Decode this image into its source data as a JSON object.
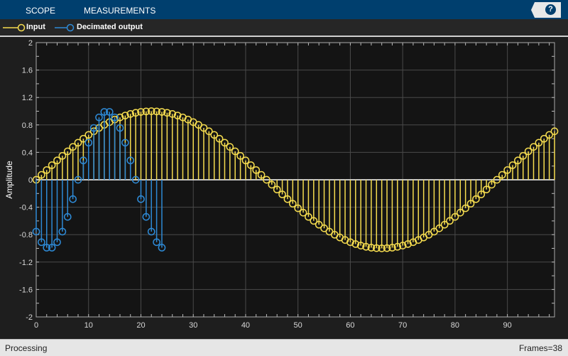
{
  "toolbar": {
    "tabs": [
      "SCOPE",
      "MEASUREMENTS"
    ],
    "help_label": "?"
  },
  "status": {
    "left": "Processing",
    "right": "Frames=38"
  },
  "colors": {
    "input": "#f5dc4f",
    "output": "#2e8ad6",
    "axes_bg": "#141414",
    "grid": "#555555"
  },
  "chart_data": {
    "type": "stem",
    "ylabel": "Amplitude",
    "xlim": [
      0,
      99
    ],
    "ylim": [
      -2,
      2
    ],
    "xticks": [
      0,
      10,
      20,
      30,
      40,
      50,
      60,
      70,
      80,
      90
    ],
    "yticks": [
      2,
      1.6,
      1.2,
      0.8,
      0.4,
      0,
      -0.4,
      -0.8,
      -1.2,
      -1.6,
      -2
    ],
    "ytick_labels": [
      "2",
      "1.6",
      "1.2",
      "0.8",
      "0.4",
      "0",
      "-0.4",
      "-0.8",
      "-1.2",
      "-1.6",
      "-2"
    ],
    "grid": true,
    "legend_position": "top-left",
    "series": [
      {
        "name": "Input",
        "color": "#f5dc4f",
        "values": [
          0,
          0.071,
          0.142,
          0.213,
          0.282,
          0.349,
          0.415,
          0.479,
          0.541,
          0.599,
          0.655,
          0.707,
          0.756,
          0.801,
          0.841,
          0.878,
          0.91,
          0.937,
          0.96,
          0.977,
          0.99,
          0.997,
          1,
          0.997,
          0.99,
          0.977,
          0.96,
          0.937,
          0.91,
          0.878,
          0.841,
          0.801,
          0.756,
          0.707,
          0.655,
          0.599,
          0.541,
          0.479,
          0.415,
          0.349,
          0.282,
          0.213,
          0.142,
          0.071,
          0,
          -0.071,
          -0.142,
          -0.213,
          -0.282,
          -0.349,
          -0.415,
          -0.479,
          -0.541,
          -0.599,
          -0.655,
          -0.707,
          -0.756,
          -0.801,
          -0.841,
          -0.878,
          -0.91,
          -0.937,
          -0.96,
          -0.977,
          -0.99,
          -0.997,
          -1,
          -0.997,
          -0.99,
          -0.977,
          -0.96,
          -0.937,
          -0.91,
          -0.878,
          -0.841,
          -0.801,
          -0.756,
          -0.707,
          -0.655,
          -0.599,
          -0.541,
          -0.479,
          -0.415,
          -0.349,
          -0.282,
          -0.213,
          -0.142,
          -0.071,
          0,
          0.071,
          0.142,
          0.213,
          0.282,
          0.349,
          0.415,
          0.479,
          0.541,
          0.599,
          0.655,
          0.707
        ]
      },
      {
        "name": "Decimated output",
        "color": "#2e8ad6",
        "values": [
          -0.756,
          -0.91,
          -0.99,
          -0.99,
          -0.91,
          -0.756,
          -0.541,
          -0.282,
          0,
          0.282,
          0.541,
          0.756,
          0.91,
          0.99,
          0.99,
          0.91,
          0.756,
          0.541,
          0.282,
          0,
          -0.282,
          -0.541,
          -0.756,
          -0.91,
          -0.99
        ]
      }
    ]
  }
}
